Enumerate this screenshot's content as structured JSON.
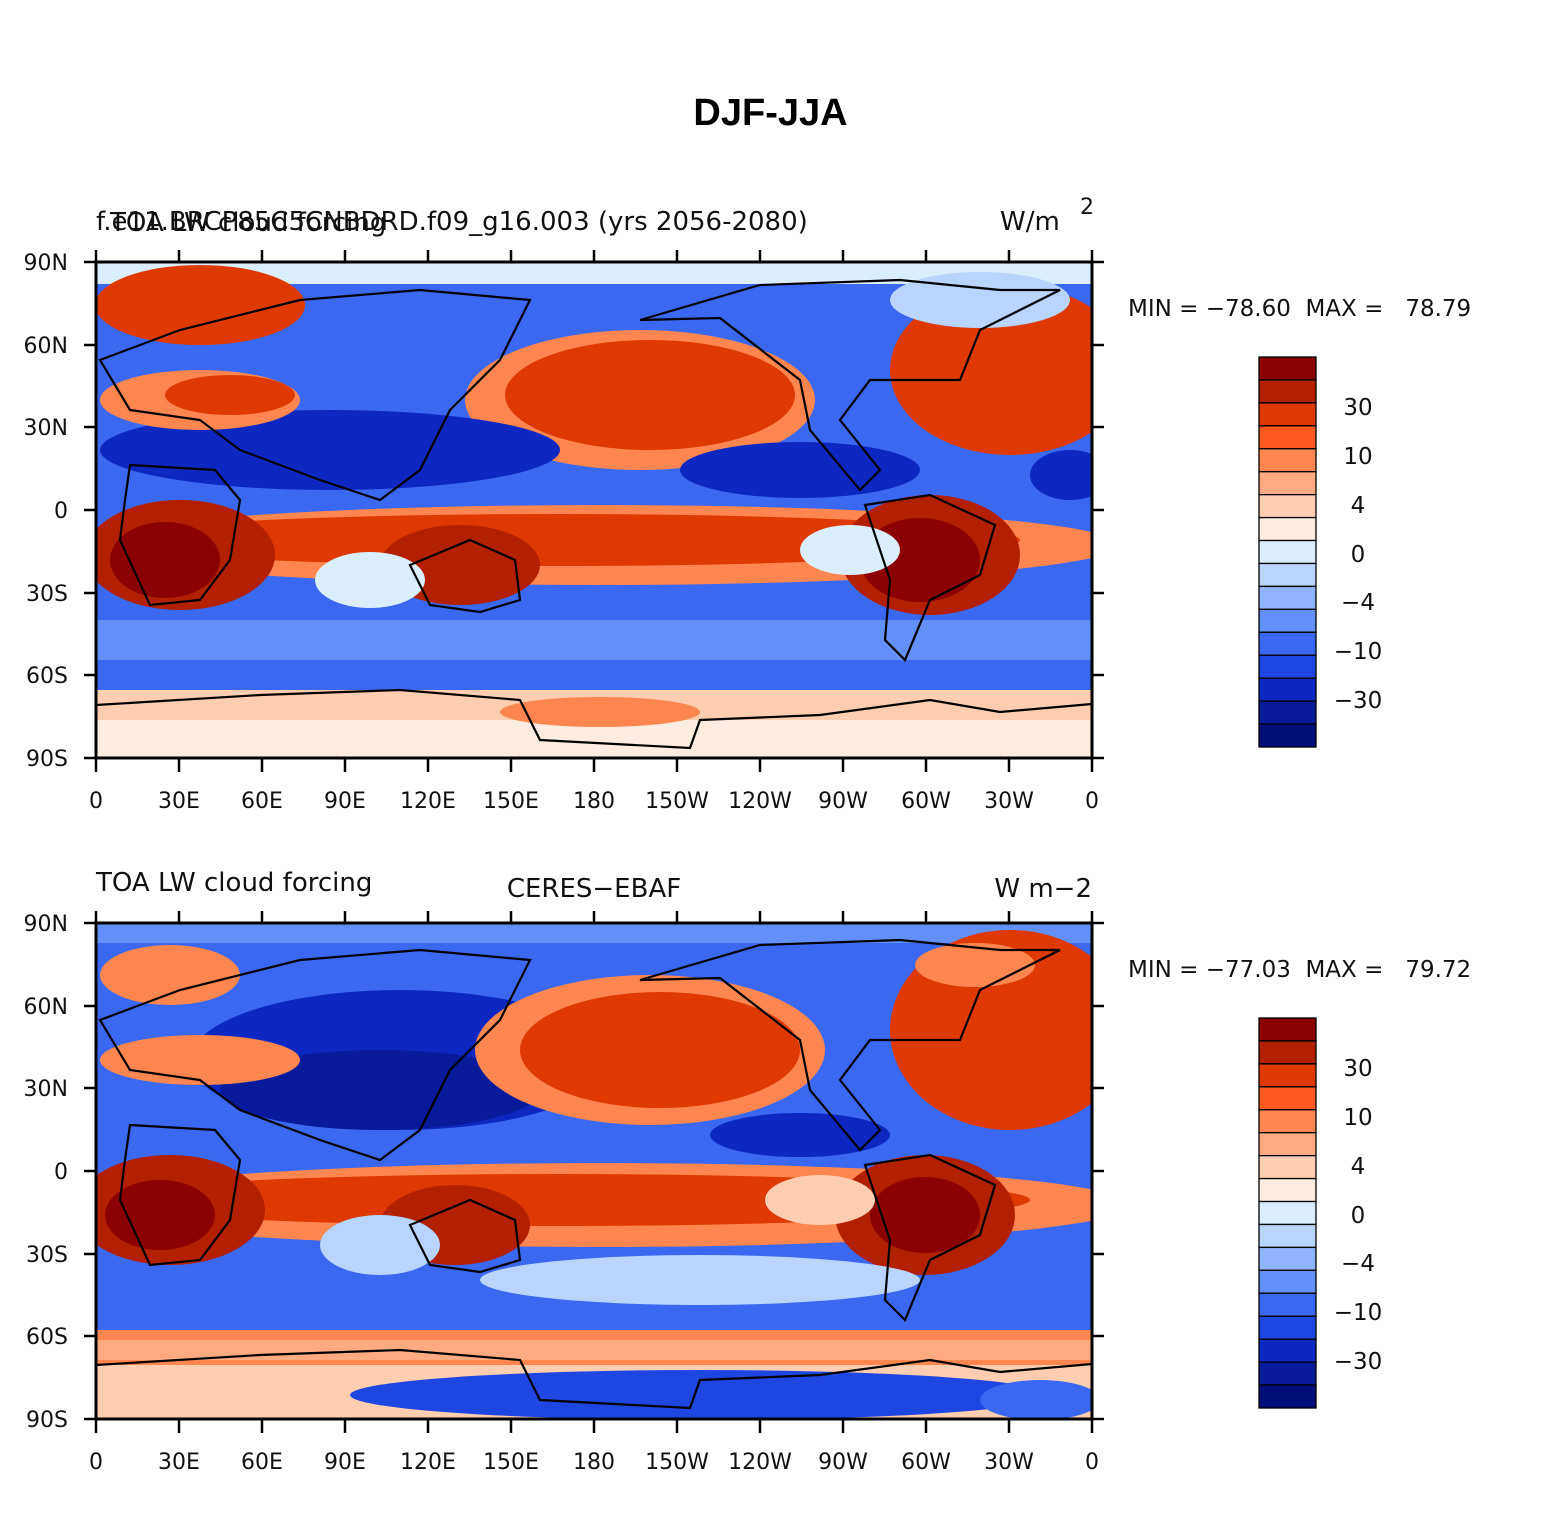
{
  "title": "DJF-JJA",
  "axes": {
    "lat_ticks": [
      "90N",
      "60N",
      "30N",
      "0",
      "30S",
      "60S",
      "90S"
    ],
    "lon_ticks": [
      "0",
      "30E",
      "60E",
      "90E",
      "120E",
      "150E",
      "180",
      "150W",
      "120W",
      "90W",
      "60W",
      "30W",
      "0"
    ]
  },
  "colorbar": {
    "labels": [
      "30",
      "10",
      "4",
      "0",
      "−4",
      "−10",
      "−30"
    ],
    "colors": [
      "#8b0000",
      "#b22000",
      "#de3a00",
      "#ff5a20",
      "#ff8650",
      "#ffaa80",
      "#ffcdb0",
      "#ffece0",
      "#dbeeff",
      "#b8d4ff",
      "#90b4ff",
      "#6290f8",
      "#3a68f0",
      "#1e46e0",
      "#0c28c0",
      "#061a9a",
      "#000e7a"
    ]
  },
  "panels": [
    {
      "id": "top",
      "left_title_overlap": "f.e11.BRCP85C5CNBDRD.f09_g16.003 (yrs 2056-2080)",
      "left_title": "TOA LW cloud forcing",
      "right_title": "W/m",
      "right_title_sup": "2",
      "center_title": "",
      "minmax": "MIN = −78.60  MAX =   78.79"
    },
    {
      "id": "bottom",
      "left_title": "TOA LW cloud forcing",
      "center_title": "CERES−EBAF",
      "right_title": "W m−2",
      "minmax": "MIN = −77.03  MAX =   79.72"
    }
  ]
}
